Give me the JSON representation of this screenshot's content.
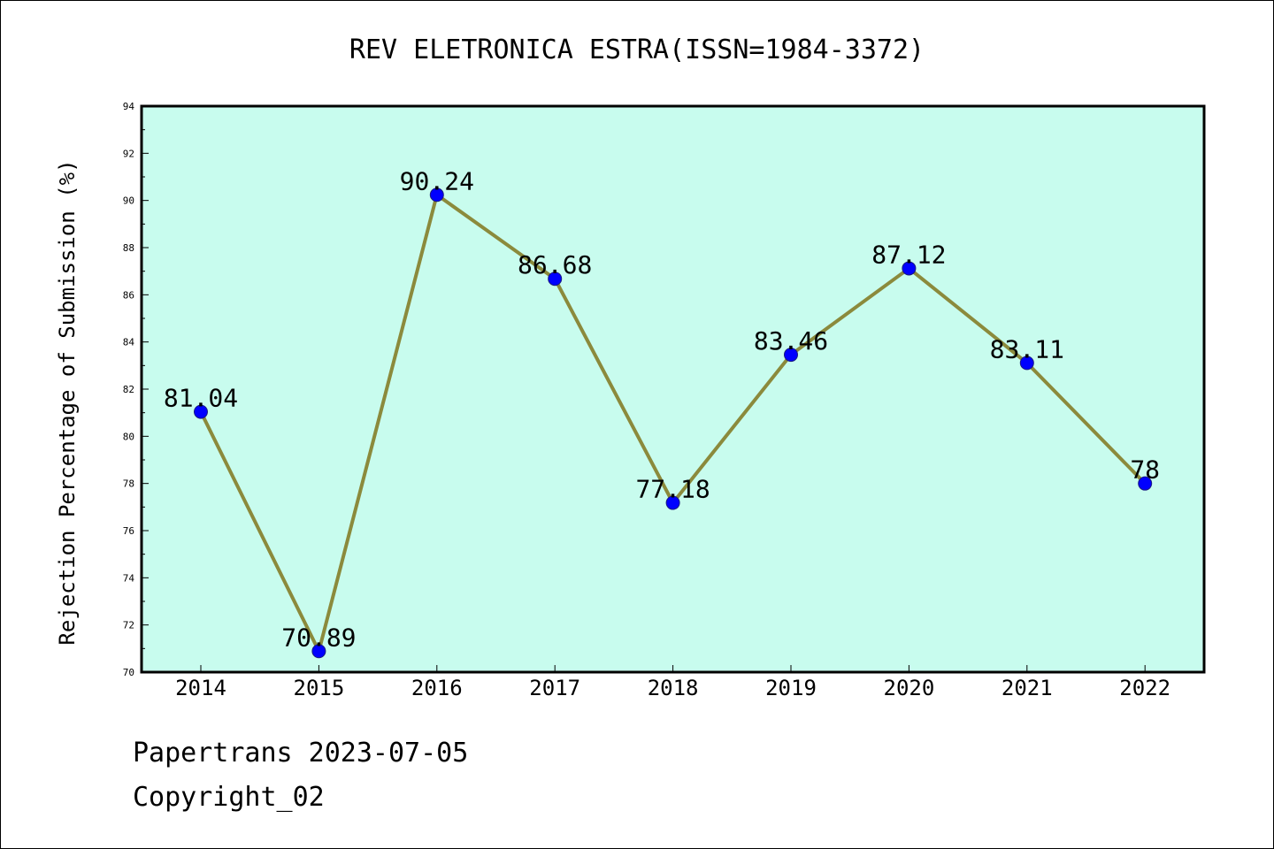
{
  "chart_data": {
    "type": "line",
    "title": "REV ELETRONICA ESTRA(ISSN=1984-3372)",
    "xlabel": "",
    "ylabel": "Rejection Percentage of Submission (%)",
    "categories": [
      "2014",
      "2015",
      "2016",
      "2017",
      "2018",
      "2019",
      "2020",
      "2021",
      "2022"
    ],
    "series": [
      {
        "values": [
          81.04,
          70.89,
          90.24,
          86.68,
          77.18,
          83.46,
          87.12,
          83.11,
          78
        ]
      }
    ],
    "data_labels": [
      "81.04",
      "70.89",
      "90.24",
      "86.68",
      "77.18",
      "83.46",
      "87.12",
      "83.11",
      "78"
    ],
    "ylim": [
      70,
      94
    ],
    "yticks": [
      "70",
      "72",
      "74",
      "76",
      "78",
      "80",
      "82",
      "84",
      "86",
      "88",
      "90",
      "92",
      "94"
    ],
    "grid": false,
    "colors": {
      "plot_background": "#c8fcee",
      "line": "#8b8a3c",
      "marker": "#0000ff"
    }
  },
  "footer": {
    "line1": "Papertrans 2023-07-05",
    "line2": "Copyright_02"
  }
}
